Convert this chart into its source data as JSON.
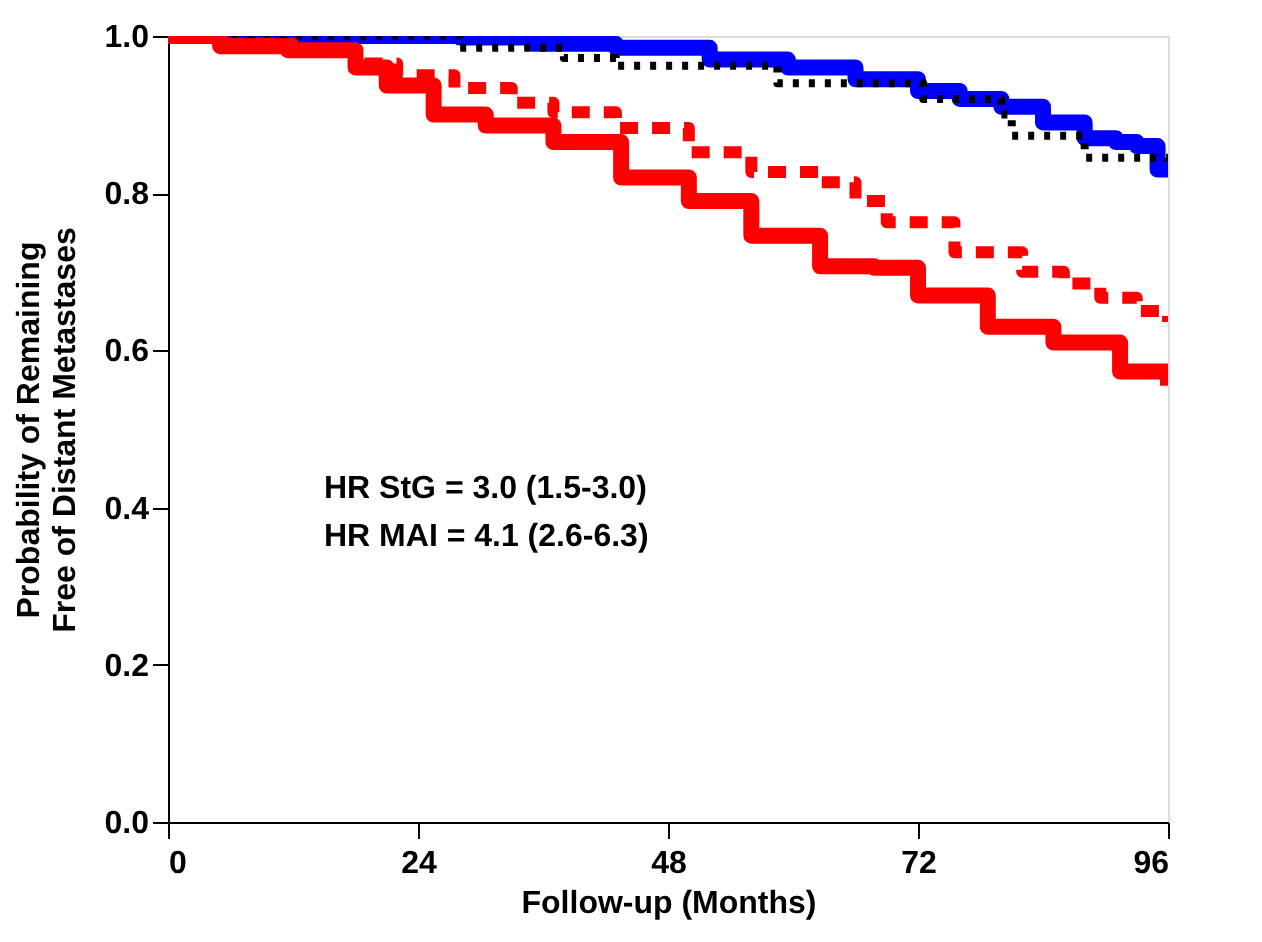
{
  "chart_data": {
    "type": "step",
    "xlabel": "Follow-up (Months)",
    "ylabel": "Probability of Remaining\nFree of  Distant Metastases",
    "xlim": [
      0,
      96
    ],
    "xticks": [
      0,
      24,
      48,
      72,
      96
    ],
    "ylim": [
      0,
      1
    ],
    "yticks": [
      {
        "value": 0,
        "label": "0.0"
      },
      0.2,
      0.4,
      0.6,
      0.8,
      {
        "value": 1,
        "label": "1.0"
      }
    ],
    "grid": false,
    "series": [
      {
        "color": "#0000ff",
        "line_style": "solid",
        "x": [
          0,
          28,
          35,
          43,
          52,
          59.5,
          66,
          72,
          76,
          80,
          84,
          88,
          91,
          93,
          95,
          96
        ],
        "values": [
          1.0,
          0.998,
          0.99,
          0.985,
          0.97,
          0.96,
          0.945,
          0.93,
          0.92,
          0.91,
          0.89,
          0.87,
          0.865,
          0.86,
          0.83,
          0.82
        ]
      },
      {
        "color": "#000000",
        "line_style": "dotted",
        "x": [
          0,
          28,
          38,
          43,
          58.5,
          72.5,
          80,
          81,
          88,
          96
        ],
        "values": [
          1.0,
          0.985,
          0.972,
          0.962,
          0.94,
          0.92,
          0.9,
          0.873,
          0.845,
          0.84
        ]
      },
      {
        "color": "#ff0000",
        "line_style": "dashed",
        "x": [
          0,
          5,
          12,
          18,
          22,
          27.5,
          33,
          37,
          43,
          50,
          56,
          62.6,
          66,
          69,
          75.5,
          82,
          86,
          89.5,
          93,
          96
        ],
        "values": [
          1.0,
          0.99,
          0.98,
          0.965,
          0.95,
          0.934,
          0.915,
          0.903,
          0.883,
          0.852,
          0.827,
          0.814,
          0.79,
          0.763,
          0.725,
          0.7,
          0.685,
          0.667,
          0.65,
          0.636
        ]
      },
      {
        "color": "#ff0000",
        "line_style": "solid",
        "x": [
          0,
          5,
          11.5,
          18,
          21,
          25.5,
          30.5,
          37,
          43.5,
          50,
          56,
          62.6,
          67.8,
          72,
          78.7,
          85,
          91.4,
          96
        ],
        "values": [
          1.0,
          0.987,
          0.982,
          0.96,
          0.937,
          0.9,
          0.886,
          0.865,
          0.82,
          0.79,
          0.746,
          0.707,
          0.705,
          0.67,
          0.63,
          0.61,
          0.573,
          0.555
        ]
      }
    ],
    "annotations": [
      "HR StG = 3.0 (1.5-3.0)",
      "HR MAI = 4.1 (2.6-6.3)"
    ]
  }
}
